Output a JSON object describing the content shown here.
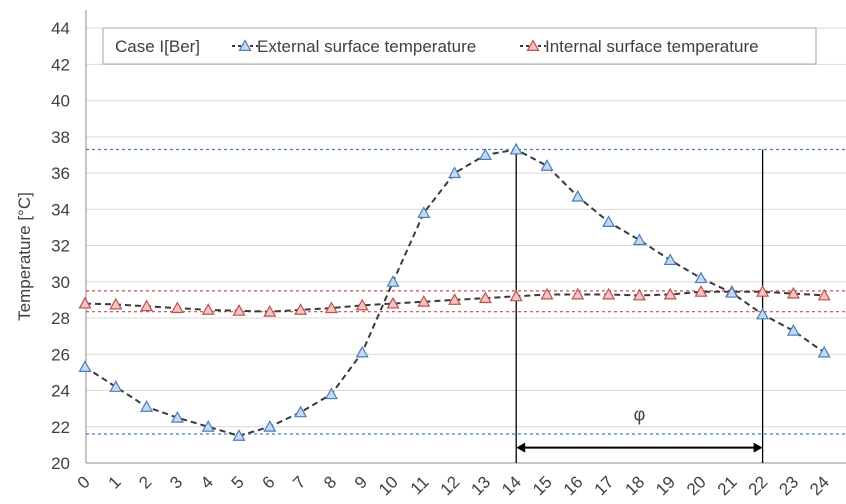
{
  "chart_data": {
    "type": "line",
    "title": "",
    "xlabel": "",
    "ylabel": "Temperature [°C]",
    "legend_title": "Case I[Ber]",
    "legend_position": "top",
    "x": [
      0,
      1,
      2,
      3,
      4,
      5,
      6,
      7,
      8,
      9,
      10,
      11,
      12,
      13,
      14,
      15,
      16,
      17,
      18,
      19,
      20,
      21,
      22,
      23,
      24
    ],
    "x_tick_labels": [
      "0",
      "1",
      "2",
      "3",
      "4",
      "5",
      "6",
      "7",
      "8",
      "9",
      "10",
      "11",
      "12",
      "13",
      "14",
      "15",
      "16",
      "17",
      "18",
      "19",
      "20",
      "21",
      "22",
      "23",
      "24"
    ],
    "ylim": [
      20,
      45
    ],
    "y_ticks": [
      20,
      22,
      24,
      26,
      28,
      30,
      32,
      34,
      36,
      38,
      40,
      42,
      44
    ],
    "y_tick_labels": [
      "20",
      "22",
      "24",
      "26",
      "28",
      "30",
      "32",
      "34",
      "36",
      "38",
      "40",
      "42",
      "44"
    ],
    "grid": "horizontal",
    "series": [
      {
        "name": "External surface temperature",
        "color": "#4a7ebb",
        "marker": "triangle",
        "line_style": "dashed",
        "values": [
          25.3,
          24.2,
          23.1,
          22.5,
          22.0,
          21.5,
          22.0,
          22.8,
          23.8,
          26.1,
          30.0,
          33.8,
          36.0,
          37.0,
          37.3,
          36.4,
          34.7,
          33.3,
          32.3,
          31.2,
          30.2,
          29.4,
          28.2,
          27.3,
          26.1
        ]
      },
      {
        "name": "Internal surface temperature",
        "color": "#c0504d",
        "marker": "triangle",
        "line_style": "dashed",
        "values": [
          28.8,
          28.75,
          28.65,
          28.55,
          28.45,
          28.4,
          28.35,
          28.45,
          28.55,
          28.7,
          28.8,
          28.9,
          29.0,
          29.1,
          29.2,
          29.3,
          29.3,
          29.3,
          29.25,
          29.3,
          29.45,
          29.45,
          29.45,
          29.35,
          29.25
        ]
      }
    ],
    "reference_lines": [
      {
        "axis": "y",
        "value": 37.3,
        "color": "#4a7ebb"
      },
      {
        "axis": "y",
        "value": 21.6,
        "color": "#4a7ebb"
      },
      {
        "axis": "y",
        "value": 29.5,
        "color": "#c0504d"
      },
      {
        "axis": "y",
        "value": 28.35,
        "color": "#c0504d"
      },
      {
        "axis": "x",
        "value": 14,
        "color": "#000000"
      },
      {
        "axis": "x",
        "value": 22,
        "color": "#000000"
      }
    ],
    "annotation": {
      "label": "φ",
      "from_x": 14,
      "to_x": 22,
      "y_value": 20.85
    }
  }
}
